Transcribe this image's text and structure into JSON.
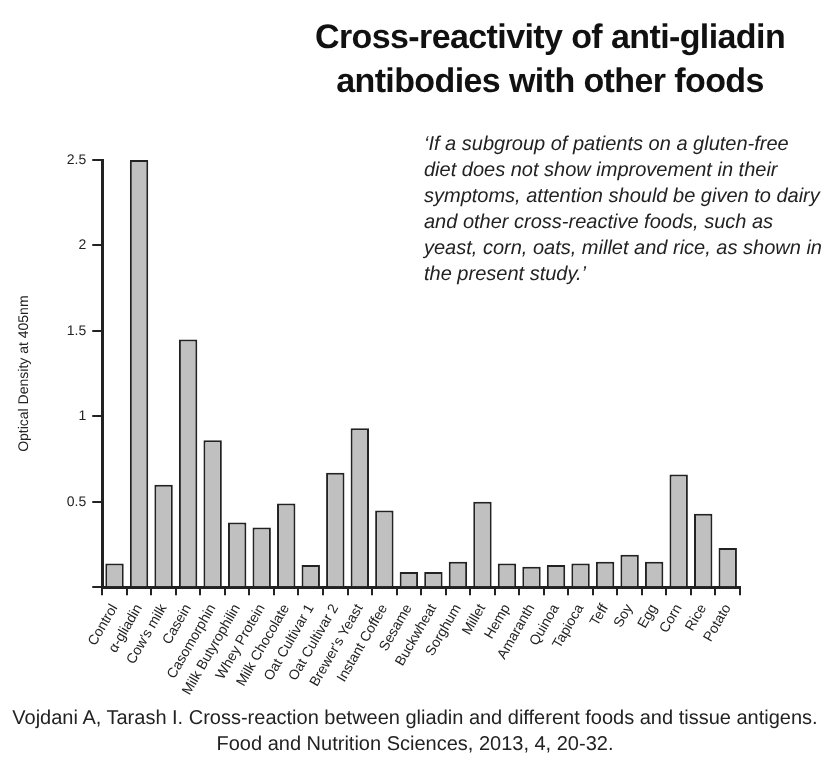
{
  "chart_data": {
    "type": "bar",
    "title": "Cross-reactivity of anti-gliadin antibodies with other foods",
    "ylabel": "Optical Density at 405nm",
    "categories": [
      "Control",
      "α-gliadin",
      "Cow's milk",
      "Casein",
      "Casomorphin",
      "Milk Butyrophilin",
      "Whey Protein",
      "Milk Chocolate",
      "Oat Cultivar 1",
      "Oat Cultivar 2",
      "Brewer's Yeast",
      "Instant Coffee",
      "Sesame",
      "Buckwheat",
      "Sorghum",
      "Millet",
      "Hemp",
      "Amaranth",
      "Quinoa",
      "Tapioca",
      "Teff",
      "Soy",
      "Egg",
      "Corn",
      "Rice",
      "Potato"
    ],
    "values": [
      0.14,
      2.5,
      0.6,
      1.45,
      0.86,
      0.38,
      0.35,
      0.49,
      0.13,
      0.67,
      0.93,
      0.45,
      0.09,
      0.09,
      0.15,
      0.5,
      0.14,
      0.12,
      0.13,
      0.14,
      0.15,
      0.19,
      0.15,
      0.66,
      0.43,
      0.23
    ],
    "color": "#c0c0c0",
    "ylim": [
      0,
      2.5
    ],
    "yticks": [
      {
        "value": 0,
        "label": null
      },
      0.5,
      1,
      1.5,
      2,
      2.5
    ],
    "grid": false,
    "legend": false,
    "annotations": [
      "‘If a subgroup of patients on a gluten-free diet does not show improvement in their symptoms, attention should be given to dairy and other cross-reactive foods, such as yeast, corn, oats, millet and rice, as shown in the present study.’",
      "Vojdani A, Tarash I. Cross-reaction between gliadin and different foods and tissue antigens. Food and Nutrition Sciences, 2013, 4, 20-32."
    ]
  }
}
